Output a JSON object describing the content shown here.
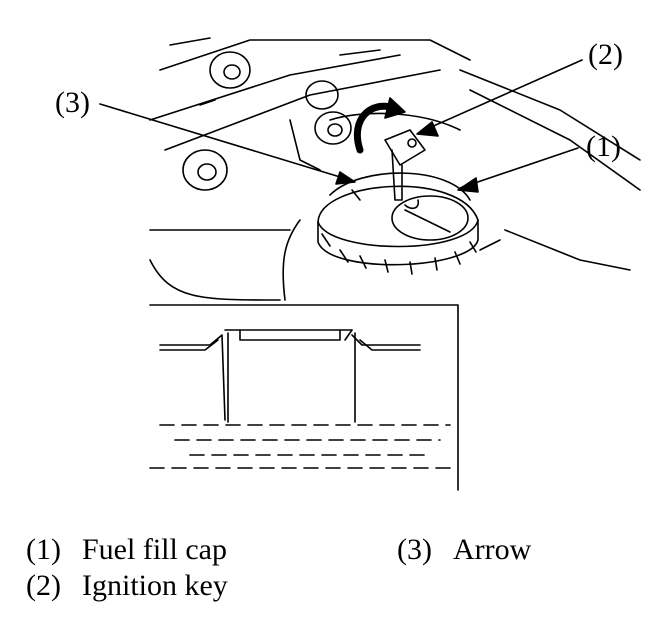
{
  "diagram": {
    "callouts": [
      {
        "id": "1",
        "label": "(1)"
      },
      {
        "id": "2",
        "label": "(2)"
      },
      {
        "id": "3",
        "label": "(3)"
      }
    ],
    "legend": [
      {
        "number": "(1)",
        "text": "Fuel fill cap"
      },
      {
        "number": "(2)",
        "text": "Ignition key"
      },
      {
        "number": "(3)",
        "text": "Arrow"
      }
    ]
  }
}
